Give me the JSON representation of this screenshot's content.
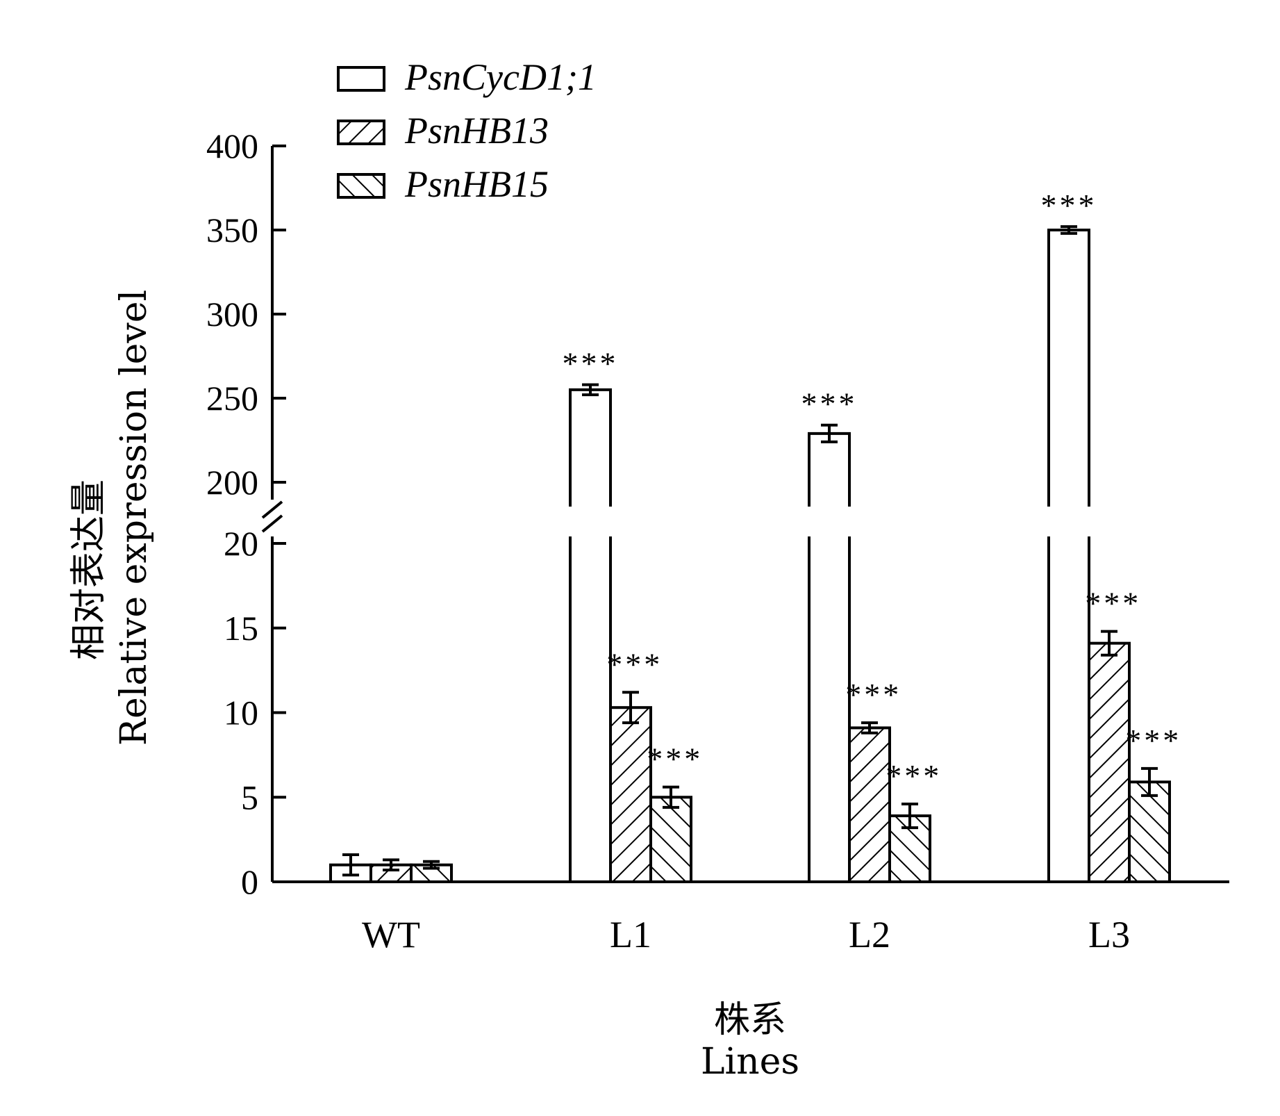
{
  "chart_data": {
    "type": "bar",
    "xlabel": [
      "株系",
      "Lines"
    ],
    "ylabel": [
      "相对表达量",
      "Relative expression level"
    ],
    "categories": [
      "WT",
      "L1",
      "L2",
      "L3"
    ],
    "series": [
      {
        "name": "PsnCycD1;1",
        "pattern": "open",
        "values": [
          1,
          255,
          229,
          350
        ],
        "errors": [
          0.6,
          3,
          5,
          2
        ],
        "significance": [
          "",
          "***",
          "***",
          "***"
        ]
      },
      {
        "name": "PsnHB13",
        "pattern": "hatch-forward",
        "values": [
          1,
          10.3,
          9.1,
          14.1
        ],
        "errors": [
          0.3,
          0.9,
          0.3,
          0.7
        ],
        "significance": [
          "",
          "***",
          "***",
          "***"
        ]
      },
      {
        "name": "PsnHB15",
        "pattern": "hatch-backward",
        "values": [
          1,
          5.0,
          3.9,
          5.9
        ],
        "errors": [
          0.2,
          0.6,
          0.7,
          0.8
        ],
        "significance": [
          "",
          "***",
          "***",
          "***"
        ]
      }
    ],
    "axis_break": {
      "lower": [
        0,
        20
      ],
      "upper": [
        200,
        400
      ]
    },
    "yticks_lower": [
      "0",
      "5",
      "10",
      "15",
      "20"
    ],
    "yticks_upper": [
      "200",
      "250",
      "300",
      "350",
      "400"
    ],
    "legend_position": "top-left",
    "grid": false
  }
}
